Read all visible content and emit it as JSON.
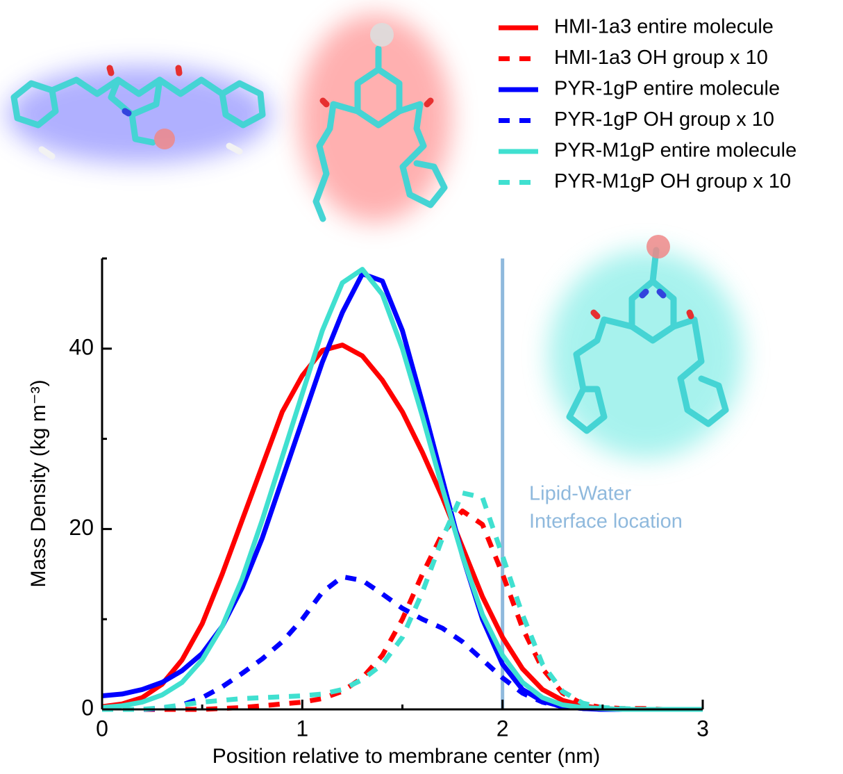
{
  "chart_data": {
    "type": "line",
    "xlabel": "Position relative to membrane center (nm)",
    "ylabel": "Mass Density (kg m⁻³)",
    "x": [
      0,
      0.1,
      0.2,
      0.3,
      0.4,
      0.5,
      0.6,
      0.7,
      0.8,
      0.9,
      1.0,
      1.1,
      1.2,
      1.3,
      1.4,
      1.5,
      1.6,
      1.7,
      1.8,
      1.9,
      2.0,
      2.1,
      2.2,
      2.3,
      2.4,
      2.5,
      2.6,
      2.7,
      2.8,
      2.9,
      3.0
    ],
    "xlim": [
      0,
      3
    ],
    "xticks": [
      0,
      1,
      2,
      3
    ],
    "xticks_minor": [
      0.5,
      1.5,
      2.5
    ],
    "ylim": [
      0,
      50
    ],
    "yticks": [
      0,
      20,
      40
    ],
    "yticks_minor": [
      10,
      30,
      50
    ],
    "series": [
      {
        "name": "HMI-1a3 entire molecule",
        "color": "#ff0000",
        "linestyle": "solid",
        "values": [
          0.3,
          0.6,
          1.3,
          2.8,
          5.5,
          9.5,
          15,
          21,
          27,
          33,
          37,
          39.8,
          40.4,
          39.2,
          36.5,
          33,
          28.5,
          23.5,
          18,
          12.5,
          8,
          4.5,
          2.2,
          1,
          0.4,
          0.1,
          0,
          0,
          0,
          0,
          0
        ]
      },
      {
        "name": "HMI-1a3 OH group x 10",
        "color": "#ff0000",
        "linestyle": "dashed",
        "values": [
          0,
          0,
          0,
          0,
          0,
          0,
          0.1,
          0.2,
          0.4,
          0.6,
          0.8,
          1.2,
          2,
          3.5,
          6,
          10,
          15,
          19.5,
          22,
          20.5,
          15,
          9,
          4.5,
          1.8,
          0.6,
          0.2,
          0.1,
          0.1,
          0,
          0,
          0
        ]
      },
      {
        "name": "PYR-1gP entire molecule",
        "color": "#0000ff",
        "linestyle": "solid",
        "values": [
          1.5,
          1.7,
          2.2,
          3,
          4.3,
          6.2,
          9.2,
          13.5,
          19,
          25.5,
          32,
          38.5,
          44,
          48.3,
          47.5,
          42,
          34,
          25.5,
          17,
          10,
          5,
          2.2,
          0.9,
          0.3,
          0.1,
          0,
          0,
          0,
          0,
          0,
          0
        ]
      },
      {
        "name": "PYR-1gP OH group x 10",
        "color": "#0000ff",
        "linestyle": "dashed",
        "values": [
          0,
          0,
          0,
          0.1,
          0.5,
          1.3,
          2.5,
          4,
          5.6,
          7.5,
          10,
          13,
          14.7,
          14.3,
          12.8,
          11.2,
          10,
          9,
          7.5,
          5.5,
          3.5,
          1.8,
          0.8,
          0.3,
          0.1,
          0,
          0,
          0,
          0,
          0,
          0
        ]
      },
      {
        "name": "PYR-M1gP entire molecule",
        "color": "#40e0d0",
        "linestyle": "solid",
        "values": [
          0.2,
          0.4,
          0.8,
          1.6,
          3,
          5.5,
          9.2,
          14.5,
          21,
          28,
          35,
          42,
          47.3,
          48.8,
          46,
          40,
          32.5,
          24.5,
          17,
          10.5,
          6,
          3,
          1.3,
          0.5,
          0.2,
          0.1,
          0,
          0,
          0,
          0,
          0
        ]
      },
      {
        "name": "PYR-M1gP OH group x 10",
        "color": "#40e0d0",
        "linestyle": "dashed",
        "values": [
          0,
          0,
          0,
          0.2,
          0.5,
          0.8,
          1,
          1.2,
          1.3,
          1.4,
          1.5,
          1.7,
          2.2,
          3.3,
          5,
          8,
          13,
          19,
          24,
          23.5,
          17,
          10.5,
          5,
          2,
          0.7,
          0.2,
          0.1,
          0,
          0,
          0,
          0
        ]
      }
    ],
    "vline": {
      "x": 2,
      "color": "#8fb9dd"
    },
    "annotation": [
      "Lipid-Water",
      "Interface location"
    ]
  }
}
